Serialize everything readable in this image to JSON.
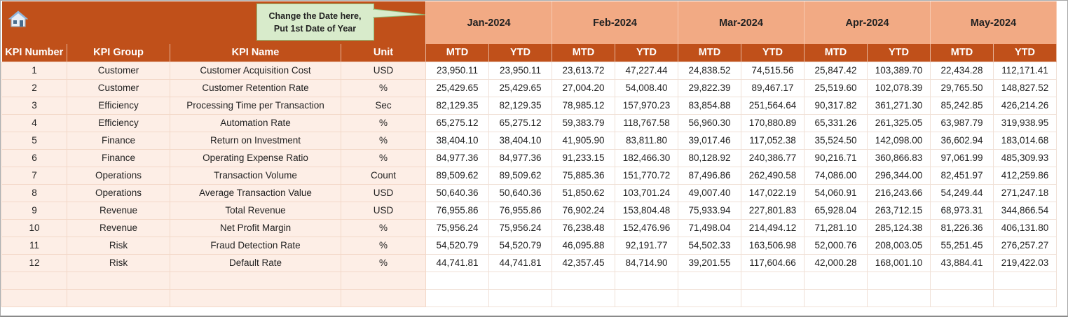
{
  "callout": {
    "line1": "Change the Date here,",
    "line2": "Put 1st Date of Year"
  },
  "icons": {
    "home": "home-icon"
  },
  "colors": {
    "header": "#C0501A",
    "month_header": "#F2AA84",
    "label_bg": "#FDEEE6",
    "callout": "#D8EBCB"
  },
  "months": [
    "Jan-2024",
    "Feb-2024",
    "Mar-2024",
    "Apr-2024",
    "May-2024"
  ],
  "headers": {
    "kpi_number": "KPI Number",
    "kpi_group": "KPI Group",
    "kpi_name": "KPI Name",
    "unit": "Unit",
    "mtd": "MTD",
    "ytd": "YTD"
  },
  "rows": [
    {
      "num": "1",
      "group": "Customer",
      "name": "Customer Acquisition Cost",
      "unit": "USD",
      "values": [
        "23,950.11",
        "23,950.11",
        "23,613.72",
        "47,227.44",
        "24,838.52",
        "74,515.56",
        "25,847.42",
        "103,389.70",
        "22,434.28",
        "112,171.41"
      ]
    },
    {
      "num": "2",
      "group": "Customer",
      "name": "Customer Retention Rate",
      "unit": "%",
      "values": [
        "25,429.65",
        "25,429.65",
        "27,004.20",
        "54,008.40",
        "29,822.39",
        "89,467.17",
        "25,519.60",
        "102,078.39",
        "29,765.50",
        "148,827.52"
      ]
    },
    {
      "num": "3",
      "group": "Efficiency",
      "name": "Processing Time per Transaction",
      "unit": "Sec",
      "values": [
        "82,129.35",
        "82,129.35",
        "78,985.12",
        "157,970.23",
        "83,854.88",
        "251,564.64",
        "90,317.82",
        "361,271.30",
        "85,242.85",
        "426,214.26"
      ]
    },
    {
      "num": "4",
      "group": "Efficiency",
      "name": "Automation Rate",
      "unit": "%",
      "values": [
        "65,275.12",
        "65,275.12",
        "59,383.79",
        "118,767.58",
        "56,960.30",
        "170,880.89",
        "65,331.26",
        "261,325.05",
        "63,987.79",
        "319,938.95"
      ]
    },
    {
      "num": "5",
      "group": "Finance",
      "name": "Return on Investment",
      "unit": "%",
      "values": [
        "38,404.10",
        "38,404.10",
        "41,905.90",
        "83,811.80",
        "39,017.46",
        "117,052.38",
        "35,524.50",
        "142,098.00",
        "36,602.94",
        "183,014.68"
      ]
    },
    {
      "num": "6",
      "group": "Finance",
      "name": "Operating Expense Ratio",
      "unit": "%",
      "values": [
        "84,977.36",
        "84,977.36",
        "91,233.15",
        "182,466.30",
        "80,128.92",
        "240,386.77",
        "90,216.71",
        "360,866.83",
        "97,061.99",
        "485,309.93"
      ]
    },
    {
      "num": "7",
      "group": "Operations",
      "name": "Transaction Volume",
      "unit": "Count",
      "values": [
        "89,509.62",
        "89,509.62",
        "75,885.36",
        "151,770.72",
        "87,496.86",
        "262,490.58",
        "74,086.00",
        "296,344.00",
        "82,451.97",
        "412,259.86"
      ]
    },
    {
      "num": "8",
      "group": "Operations",
      "name": "Average Transaction Value",
      "unit": "USD",
      "values": [
        "50,640.36",
        "50,640.36",
        "51,850.62",
        "103,701.24",
        "49,007.40",
        "147,022.19",
        "54,060.91",
        "216,243.66",
        "54,249.44",
        "271,247.18"
      ]
    },
    {
      "num": "9",
      "group": "Revenue",
      "name": "Total Revenue",
      "unit": "USD",
      "values": [
        "76,955.86",
        "76,955.86",
        "76,902.24",
        "153,804.48",
        "75,933.94",
        "227,801.83",
        "65,928.04",
        "263,712.15",
        "68,973.31",
        "344,866.54"
      ]
    },
    {
      "num": "10",
      "group": "Revenue",
      "name": "Net Profit Margin",
      "unit": "%",
      "values": [
        "75,956.24",
        "75,956.24",
        "76,238.48",
        "152,476.96",
        "71,498.04",
        "214,494.12",
        "71,281.10",
        "285,124.38",
        "81,226.36",
        "406,131.80"
      ]
    },
    {
      "num": "11",
      "group": "Risk",
      "name": "Fraud Detection Rate",
      "unit": "%",
      "values": [
        "54,520.79",
        "54,520.79",
        "46,095.88",
        "92,191.77",
        "54,502.33",
        "163,506.98",
        "52,000.76",
        "208,003.05",
        "55,251.45",
        "276,257.27"
      ]
    },
    {
      "num": "12",
      "group": "Risk",
      "name": "Default Rate",
      "unit": "%",
      "values": [
        "44,741.81",
        "44,741.81",
        "42,357.45",
        "84,714.90",
        "39,201.55",
        "117,604.66",
        "42,000.28",
        "168,001.10",
        "43,884.41",
        "219,422.03"
      ]
    }
  ]
}
